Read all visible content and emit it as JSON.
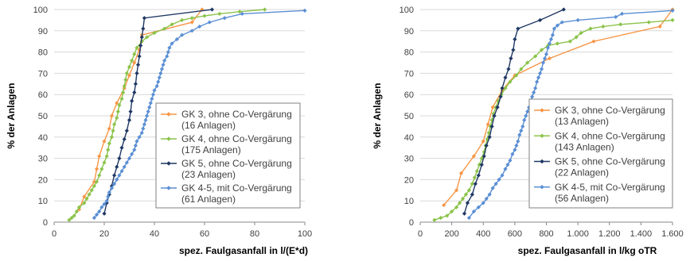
{
  "chart_data": [
    {
      "type": "line",
      "xlabel": "spez. Faulgasanfall in l/(E*d)",
      "ylabel": "% der Anlagen",
      "xlim": [
        0,
        100
      ],
      "ylim": [
        0,
        100
      ],
      "x_ticks": [
        "0",
        "20",
        "40",
        "60",
        "80",
        "100"
      ],
      "y_ticks": [
        "0",
        "10",
        "20",
        "30",
        "40",
        "50",
        "60",
        "70",
        "80",
        "90",
        "100"
      ],
      "grid": true,
      "legend_position": "lower-right",
      "series": [
        {
          "name": "GK 3, ohne Co-Vergärung",
          "name_lines": [
            "GK 3, ohne Co-Vergärung",
            "(16 Anlagen)"
          ],
          "color": "#f79646",
          "marker": "diamond",
          "points": [
            [
              10,
              6
            ],
            [
              12,
              12
            ],
            [
              16,
              19
            ],
            [
              17,
              25
            ],
            [
              18,
              31
            ],
            [
              20,
              38
            ],
            [
              22,
              44
            ],
            [
              23,
              50
            ],
            [
              25,
              56
            ],
            [
              28,
              63
            ],
            [
              30,
              69
            ],
            [
              32,
              75
            ],
            [
              34,
              81
            ],
            [
              35,
              88
            ],
            [
              55,
              94
            ],
            [
              59,
              100
            ]
          ]
        },
        {
          "name": "GK 4, ohne Co-Vergärung",
          "name_lines": [
            "GK 4, ohne Co-Vergärung",
            "(175 Anlagen)"
          ],
          "color": "#8bc34a",
          "marker": "diamond",
          "points": [
            [
              6,
              1
            ],
            [
              7,
              2
            ],
            [
              8,
              3
            ],
            [
              9,
              5
            ],
            [
              10,
              7
            ],
            [
              12,
              9
            ],
            [
              13,
              11
            ],
            [
              14,
              13
            ],
            [
              15,
              15
            ],
            [
              16,
              17
            ],
            [
              17,
              19
            ],
            [
              18,
              22
            ],
            [
              19,
              25
            ],
            [
              20,
              28
            ],
            [
              21,
              31
            ],
            [
              21.5,
              34
            ],
            [
              22,
              37
            ],
            [
              23,
              40
            ],
            [
              23.5,
              43
            ],
            [
              24,
              46
            ],
            [
              25,
              49
            ],
            [
              25.5,
              52
            ],
            [
              26,
              55
            ],
            [
              27,
              58
            ],
            [
              27.5,
              61
            ],
            [
              28,
              64
            ],
            [
              28.5,
              67
            ],
            [
              29,
              70
            ],
            [
              30,
              73
            ],
            [
              31,
              76
            ],
            [
              32,
              79
            ],
            [
              33,
              82
            ],
            [
              35,
              85
            ],
            [
              37,
              87
            ],
            [
              40,
              89
            ],
            [
              44,
              91
            ],
            [
              47,
              93
            ],
            [
              51,
              95
            ],
            [
              55,
              96
            ],
            [
              60,
              97
            ],
            [
              66,
              98
            ],
            [
              74,
              99
            ],
            [
              84,
              100
            ]
          ]
        },
        {
          "name": "GK 5, ohne Co-Vergärung",
          "name_lines": [
            "GK 5, ohne Co-Vergärung",
            "(23 Anlagen)"
          ],
          "color": "#1f3864",
          "marker": "diamond",
          "points": [
            [
              20,
              4
            ],
            [
              21,
              9
            ],
            [
              22,
              13
            ],
            [
              23,
              17
            ],
            [
              24,
              22
            ],
            [
              25,
              26
            ],
            [
              26,
              30
            ],
            [
              27,
              35
            ],
            [
              28,
              39
            ],
            [
              29,
              43
            ],
            [
              30,
              48
            ],
            [
              30.5,
              52
            ],
            [
              31,
              57
            ],
            [
              32,
              61
            ],
            [
              32.5,
              65
            ],
            [
              33,
              70
            ],
            [
              33.5,
              74
            ],
            [
              34,
              78
            ],
            [
              34.5,
              83
            ],
            [
              35,
              87
            ],
            [
              35.5,
              91
            ],
            [
              36,
              96
            ],
            [
              63,
              100
            ]
          ]
        },
        {
          "name": "GK 4-5, mit Co-Vergärung",
          "name_lines": [
            "GK 4-5, mit Co-Vergärung",
            "(61 Anlagen)"
          ],
          "color": "#5b8fd4",
          "marker": "diamond",
          "points": [
            [
              16,
              2
            ],
            [
              17,
              3.5
            ],
            [
              18,
              5
            ],
            [
              19,
              7
            ],
            [
              20,
              8.5
            ],
            [
              21,
              10
            ],
            [
              21.5,
              12
            ],
            [
              22,
              14
            ],
            [
              23,
              16
            ],
            [
              24,
              18
            ],
            [
              25,
              20
            ],
            [
              26,
              22
            ],
            [
              27,
              24
            ],
            [
              28,
              26
            ],
            [
              29,
              28
            ],
            [
              30,
              30
            ],
            [
              31,
              32
            ],
            [
              32,
              34
            ],
            [
              32.5,
              36
            ],
            [
              33,
              38
            ],
            [
              34,
              40
            ],
            [
              35,
              42
            ],
            [
              35.5,
              44
            ],
            [
              36,
              46
            ],
            [
              36.5,
              48
            ],
            [
              37,
              50
            ],
            [
              37.5,
              52
            ],
            [
              38,
              54
            ],
            [
              38.5,
              56
            ],
            [
              39,
              58
            ],
            [
              39.5,
              60
            ],
            [
              40,
              62
            ],
            [
              41,
              64
            ],
            [
              41.5,
              66
            ],
            [
              42,
              68
            ],
            [
              42.5,
              70
            ],
            [
              43,
              72
            ],
            [
              43.5,
              74
            ],
            [
              44,
              76
            ],
            [
              45,
              78
            ],
            [
              45.5,
              80
            ],
            [
              46,
              82
            ],
            [
              47,
              84
            ],
            [
              49,
              86
            ],
            [
              51,
              88
            ],
            [
              55,
              90
            ],
            [
              58,
              92
            ],
            [
              62,
              94
            ],
            [
              68,
              96
            ],
            [
              75,
              98
            ],
            [
              100,
              99.5
            ]
          ]
        }
      ]
    },
    {
      "type": "line",
      "xlabel": "spez. Faulgasanfall in l/kg oTR",
      "ylabel": "% der Anlagen",
      "xlim": [
        0,
        1600
      ],
      "ylim": [
        0,
        100
      ],
      "x_ticks": [
        "0",
        "200",
        "400",
        "600",
        "800",
        "1.000",
        "1.200",
        "1.400",
        "1.600"
      ],
      "y_ticks": [
        "0",
        "10",
        "20",
        "30",
        "40",
        "50",
        "60",
        "70",
        "80",
        "90",
        "100"
      ],
      "grid": true,
      "legend_position": "lower-right",
      "series": [
        {
          "name": "GK 3, ohne Co-Vergärung",
          "name_lines": [
            "GK 3, ohne Co-Vergärung",
            "(13 Anlagen)"
          ],
          "color": "#f79646",
          "marker": "diamond",
          "points": [
            [
              150,
              8
            ],
            [
              230,
              15
            ],
            [
              260,
              23
            ],
            [
              340,
              31
            ],
            [
              400,
              38
            ],
            [
              430,
              46
            ],
            [
              460,
              54
            ],
            [
              520,
              62
            ],
            [
              600,
              69
            ],
            [
              820,
              77
            ],
            [
              1100,
              85
            ],
            [
              1520,
              92
            ],
            [
              1600,
              100
            ]
          ]
        },
        {
          "name": "GK 4, ohne Co-Vergärung",
          "name_lines": [
            "GK 4, ohne Co-Vergärung",
            "(143 Anlagen)"
          ],
          "color": "#8bc34a",
          "marker": "diamond",
          "points": [
            [
              90,
              1
            ],
            [
              130,
              2
            ],
            [
              170,
              3
            ],
            [
              200,
              5
            ],
            [
              230,
              7
            ],
            [
              250,
              9
            ],
            [
              270,
              11
            ],
            [
              290,
              13
            ],
            [
              310,
              15
            ],
            [
              330,
              18
            ],
            [
              345,
              21
            ],
            [
              360,
              24
            ],
            [
              375,
              27
            ],
            [
              390,
              30
            ],
            [
              405,
              33
            ],
            [
              415,
              36
            ],
            [
              425,
              39
            ],
            [
              435,
              42
            ],
            [
              445,
              45
            ],
            [
              455,
              48
            ],
            [
              465,
              51
            ],
            [
              480,
              54
            ],
            [
              495,
              57
            ],
            [
              515,
              60
            ],
            [
              540,
              63
            ],
            [
              570,
              66
            ],
            [
              610,
              69
            ],
            [
              640,
              72
            ],
            [
              680,
              75
            ],
            [
              730,
              78
            ],
            [
              770,
              81
            ],
            [
              810,
              83
            ],
            [
              870,
              84
            ],
            [
              950,
              85
            ],
            [
              990,
              87
            ],
            [
              1020,
              89
            ],
            [
              1080,
              91
            ],
            [
              1160,
              92
            ],
            [
              1270,
              93
            ],
            [
              1450,
              94
            ],
            [
              1600,
              95
            ]
          ]
        },
        {
          "name": "GK 5, ohne Co-Vergärung",
          "name_lines": [
            "GK 5, ohne Co-Vergärung",
            "(22 Anlagen)"
          ],
          "color": "#1f3864",
          "marker": "diamond",
          "points": [
            [
              280,
              4
            ],
            [
              300,
              9
            ],
            [
              330,
              13
            ],
            [
              350,
              18
            ],
            [
              370,
              22
            ],
            [
              390,
              27
            ],
            [
              405,
              31
            ],
            [
              420,
              36
            ],
            [
              440,
              40
            ],
            [
              455,
              45
            ],
            [
              470,
              50
            ],
            [
              490,
              54
            ],
            [
              510,
              59
            ],
            [
              520,
              63
            ],
            [
              540,
              68
            ],
            [
              560,
              72
            ],
            [
              575,
              77
            ],
            [
              590,
              81
            ],
            [
              600,
              86
            ],
            [
              620,
              91
            ],
            [
              760,
              95
            ],
            [
              910,
              100
            ]
          ]
        },
        {
          "name": "GK 4-5, mit Co-Vergärung",
          "name_lines": [
            "GK 4-5, mit Co-Vergärung",
            "(56 Anlagen)"
          ],
          "color": "#5b8fd4",
          "marker": "diamond",
          "points": [
            [
              310,
              2
            ],
            [
              340,
              5
            ],
            [
              370,
              7
            ],
            [
              400,
              9
            ],
            [
              420,
              11
            ],
            [
              440,
              13
            ],
            [
              460,
              16
            ],
            [
              480,
              18
            ],
            [
              500,
              20
            ],
            [
              520,
              22
            ],
            [
              540,
              25
            ],
            [
              555,
              27
            ],
            [
              570,
              29
            ],
            [
              585,
              32
            ],
            [
              600,
              34
            ],
            [
              610,
              36
            ],
            [
              620,
              38
            ],
            [
              630,
              41
            ],
            [
              640,
              43
            ],
            [
              650,
              45
            ],
            [
              660,
              48
            ],
            [
              670,
              50
            ],
            [
              680,
              52
            ],
            [
              690,
              54
            ],
            [
              700,
              57
            ],
            [
              710,
              59
            ],
            [
              720,
              61
            ],
            [
              730,
              63
            ],
            [
              740,
              66
            ],
            [
              750,
              68
            ],
            [
              760,
              70
            ],
            [
              770,
              72
            ],
            [
              780,
              75
            ],
            [
              790,
              77
            ],
            [
              800,
              79
            ],
            [
              810,
              82
            ],
            [
              820,
              84
            ],
            [
              830,
              86
            ],
            [
              840,
              88
            ],
            [
              850,
              91
            ],
            [
              870,
              92.5
            ],
            [
              900,
              94
            ],
            [
              1000,
              95
            ],
            [
              1240,
              96.5
            ],
            [
              1280,
              98
            ],
            [
              1600,
              99.5
            ]
          ]
        }
      ]
    }
  ]
}
